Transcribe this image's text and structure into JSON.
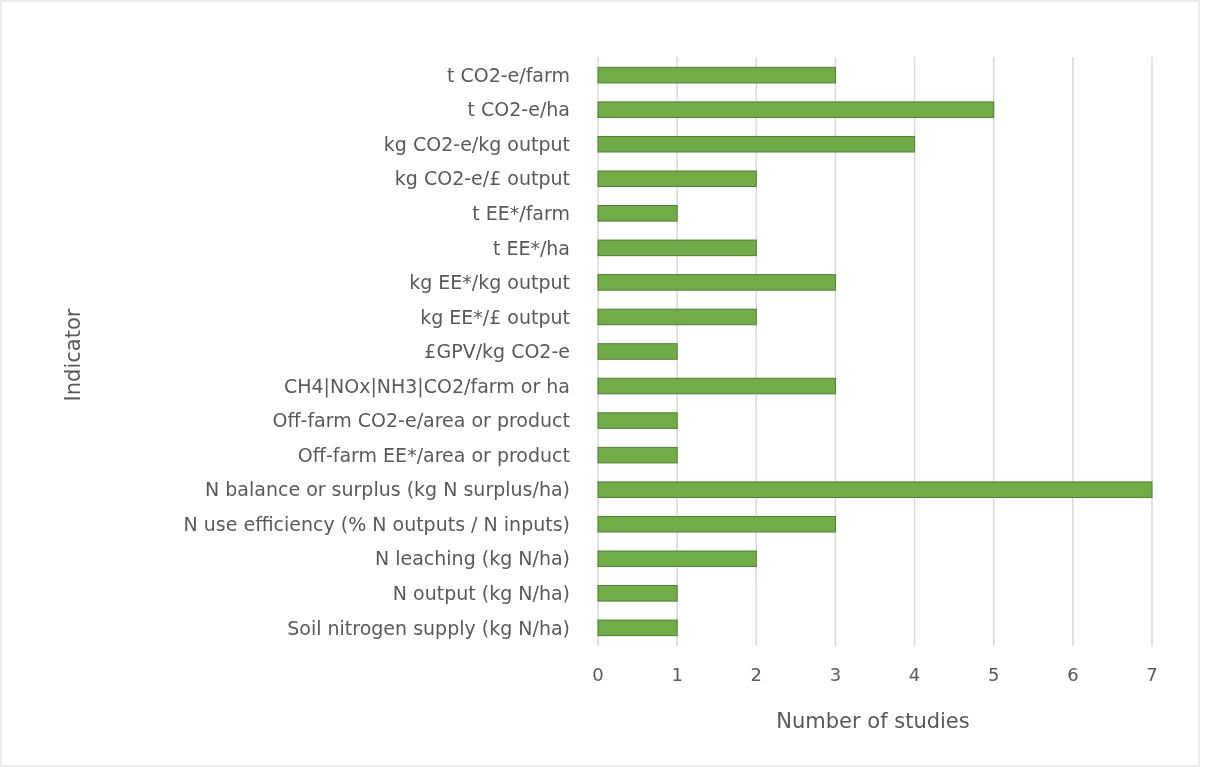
{
  "chart_data": {
    "type": "bar",
    "orientation": "horizontal",
    "xlabel": "Number of studies",
    "ylabel": "Indicator",
    "categories": [
      "t CO2-e/farm",
      "t CO2-e/ha",
      "kg CO2-e/kg output",
      "kg CO2-e/£ output",
      "t EE*/farm",
      "t EE*/ha",
      "kg EE*/kg output",
      "kg EE*/£ output",
      "£GPV/kg CO2-e",
      "CH4|NOx|NH3|CO2/farm or ha",
      "Off-farm CO2-e/area or product",
      "Off-farm EE*/area or product",
      "N balance or surplus (kg N surplus/ha)",
      "N use efficiency (% N outputs / N inputs)",
      "N leaching (kg N/ha)",
      "N output (kg N/ha)",
      "Soil nitrogen supply (kg N/ha)"
    ],
    "values": [
      3,
      5,
      4,
      2,
      1,
      2,
      3,
      2,
      1,
      3,
      1,
      1,
      7,
      3,
      2,
      1,
      1
    ],
    "color": "#70ad47",
    "xlim": [
      0,
      7
    ],
    "xticks": [
      0,
      1,
      2,
      3,
      4,
      5,
      6,
      7
    ],
    "grid": "x"
  }
}
